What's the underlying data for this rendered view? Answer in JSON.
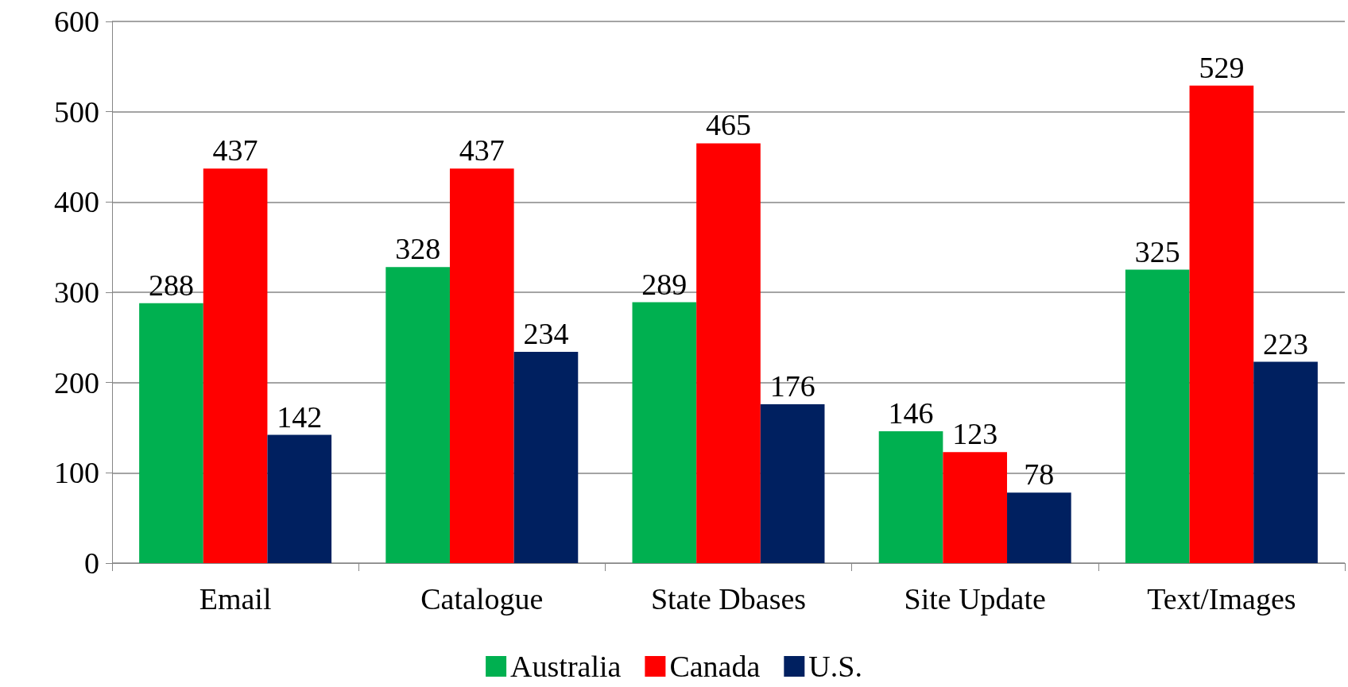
{
  "chart_data": {
    "type": "bar",
    "categories": [
      "Email",
      "Catalogue",
      "State Dbases",
      "Site Update",
      "Text/Images"
    ],
    "series": [
      {
        "name": "Australia",
        "color": "#00b050",
        "values": [
          288,
          328,
          289,
          146,
          325
        ]
      },
      {
        "name": "Canada",
        "color": "#ff0000",
        "values": [
          437,
          437,
          465,
          123,
          529
        ]
      },
      {
        "name": "U.S.",
        "color": "#002060",
        "values": [
          142,
          234,
          176,
          78,
          223
        ]
      }
    ],
    "ylim": [
      0,
      600
    ],
    "yticks": [
      0,
      100,
      200,
      300,
      400,
      500,
      600
    ],
    "grid": "y",
    "legend": "bottom",
    "data_labels": true
  }
}
